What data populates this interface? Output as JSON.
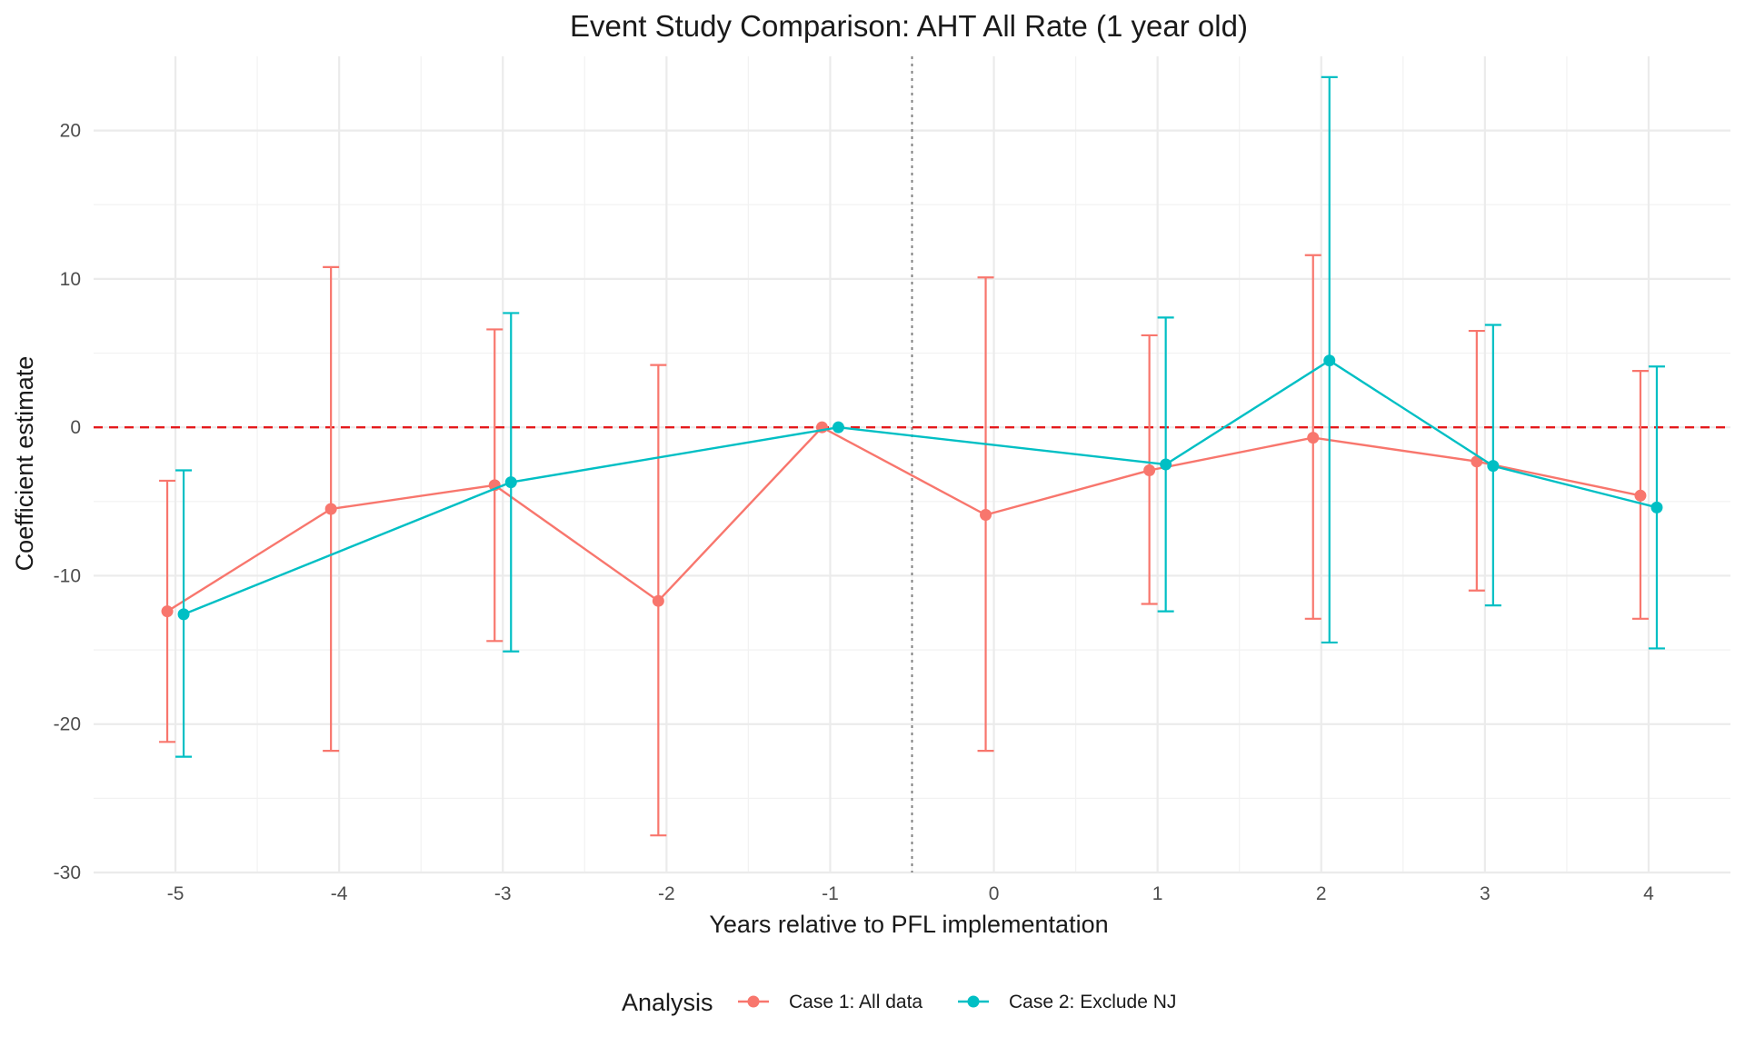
{
  "chart_data": {
    "type": "line",
    "title": "Event Study Comparison: AHT All Rate (1 year old)",
    "xlabel": "Years relative to PFL implementation",
    "ylabel": "Coefficient estimate",
    "xlim": [
      -5.5,
      4.5
    ],
    "ylim": [
      -30,
      25
    ],
    "x_ticks": [
      -5,
      -4,
      -3,
      -2,
      -1,
      0,
      1,
      2,
      3,
      4
    ],
    "y_ticks": [
      -30,
      -20,
      -10,
      0,
      10,
      20
    ],
    "grid": true,
    "reference_lines": {
      "horizontal_y": 0,
      "horizontal_color": "#e41a1c",
      "vertical_x": -0.5,
      "vertical_color": "#7f7f7f"
    },
    "legend": {
      "title": "Analysis",
      "position": "bottom"
    },
    "series": [
      {
        "name": "Case 1: All data",
        "color": "#F8766D",
        "x": [
          -5,
          -4,
          -3,
          -2,
          -1,
          0,
          1,
          2,
          3,
          4
        ],
        "y": [
          -12.4,
          -5.5,
          -3.9,
          -11.7,
          0.0,
          -5.9,
          -2.9,
          -0.7,
          -2.3,
          -4.6
        ],
        "ci_low": [
          -21.2,
          -21.8,
          -14.4,
          -27.5,
          null,
          -21.8,
          -11.9,
          -12.9,
          -11.0,
          -12.9
        ],
        "ci_high": [
          -3.6,
          10.8,
          6.6,
          4.2,
          null,
          10.1,
          6.2,
          11.6,
          6.5,
          3.8
        ]
      },
      {
        "name": "Case 2: Exclude NJ",
        "color": "#00BFC4",
        "x": [
          -5,
          -3,
          -1,
          1,
          2,
          3,
          4
        ],
        "y": [
          -12.6,
          -3.7,
          0.0,
          -2.5,
          4.5,
          -2.6,
          -5.4
        ],
        "ci_low": [
          -22.2,
          -15.1,
          null,
          -12.4,
          -14.5,
          -12.0,
          -14.9
        ],
        "ci_high": [
          -2.9,
          7.7,
          null,
          7.4,
          23.6,
          6.9,
          4.1
        ]
      }
    ]
  }
}
